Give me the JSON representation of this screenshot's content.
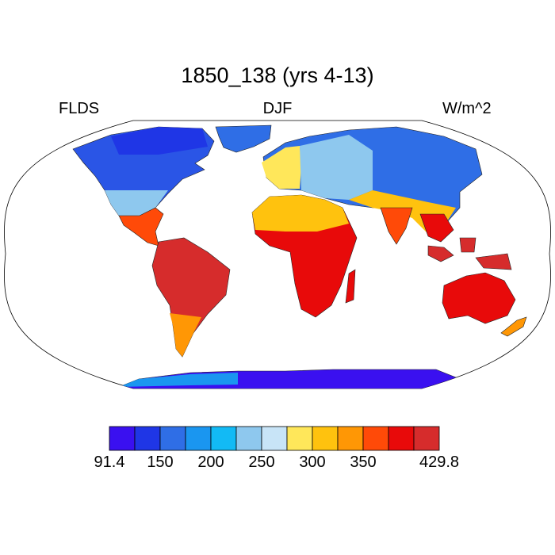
{
  "title": "1850_138 (yrs 4-13)",
  "variable": "FLDS",
  "season": "DJF",
  "units": "W/m^2",
  "colorbar": {
    "colors": [
      "#3a10f0",
      "#1f36e6",
      "#2f6ee6",
      "#1a96f0",
      "#12baf5",
      "#8ec8ee",
      "#c8e4f7",
      "#ffe75a",
      "#ffc20e",
      "#ff9705",
      "#ff4a08",
      "#e80a0a",
      "#d62c2c"
    ],
    "tick_labels": [
      "91.4",
      "150",
      "200",
      "250",
      "300",
      "350",
      "429.8"
    ]
  },
  "icons": {
    "land": "world-land-masses"
  }
}
